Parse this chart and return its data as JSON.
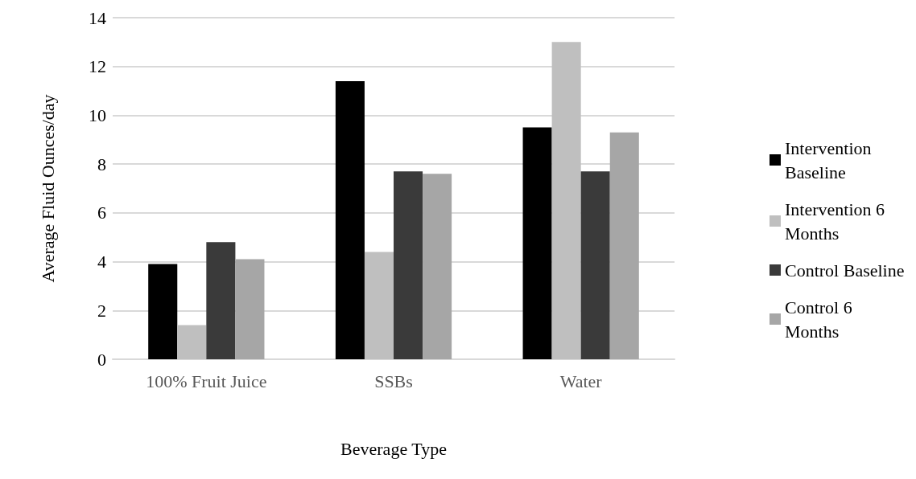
{
  "chart_data": {
    "type": "bar",
    "xlabel": "Beverage Type",
    "ylabel": "Average Fluid Ounces/day",
    "categories": [
      "100% Fruit Juice",
      "SSBs",
      "Water"
    ],
    "series": [
      {
        "name": "Intervention Baseline",
        "color": "#000000",
        "values": [
          3.9,
          11.4,
          9.5
        ]
      },
      {
        "name": "Intervention 6 Months",
        "color": "#bfbfbf",
        "values": [
          1.4,
          4.4,
          13.0
        ]
      },
      {
        "name": "Control Baseline",
        "color": "#3a3a3a",
        "values": [
          4.8,
          7.7,
          7.7
        ]
      },
      {
        "name": "Control 6 Months",
        "color": "#a6a6a6",
        "values": [
          4.1,
          7.6,
          9.3
        ]
      }
    ],
    "ylim": [
      0,
      14
    ],
    "yticks": [
      0,
      2,
      4,
      6,
      8,
      10,
      12,
      14
    ],
    "grid": "y",
    "legend": "right"
  }
}
